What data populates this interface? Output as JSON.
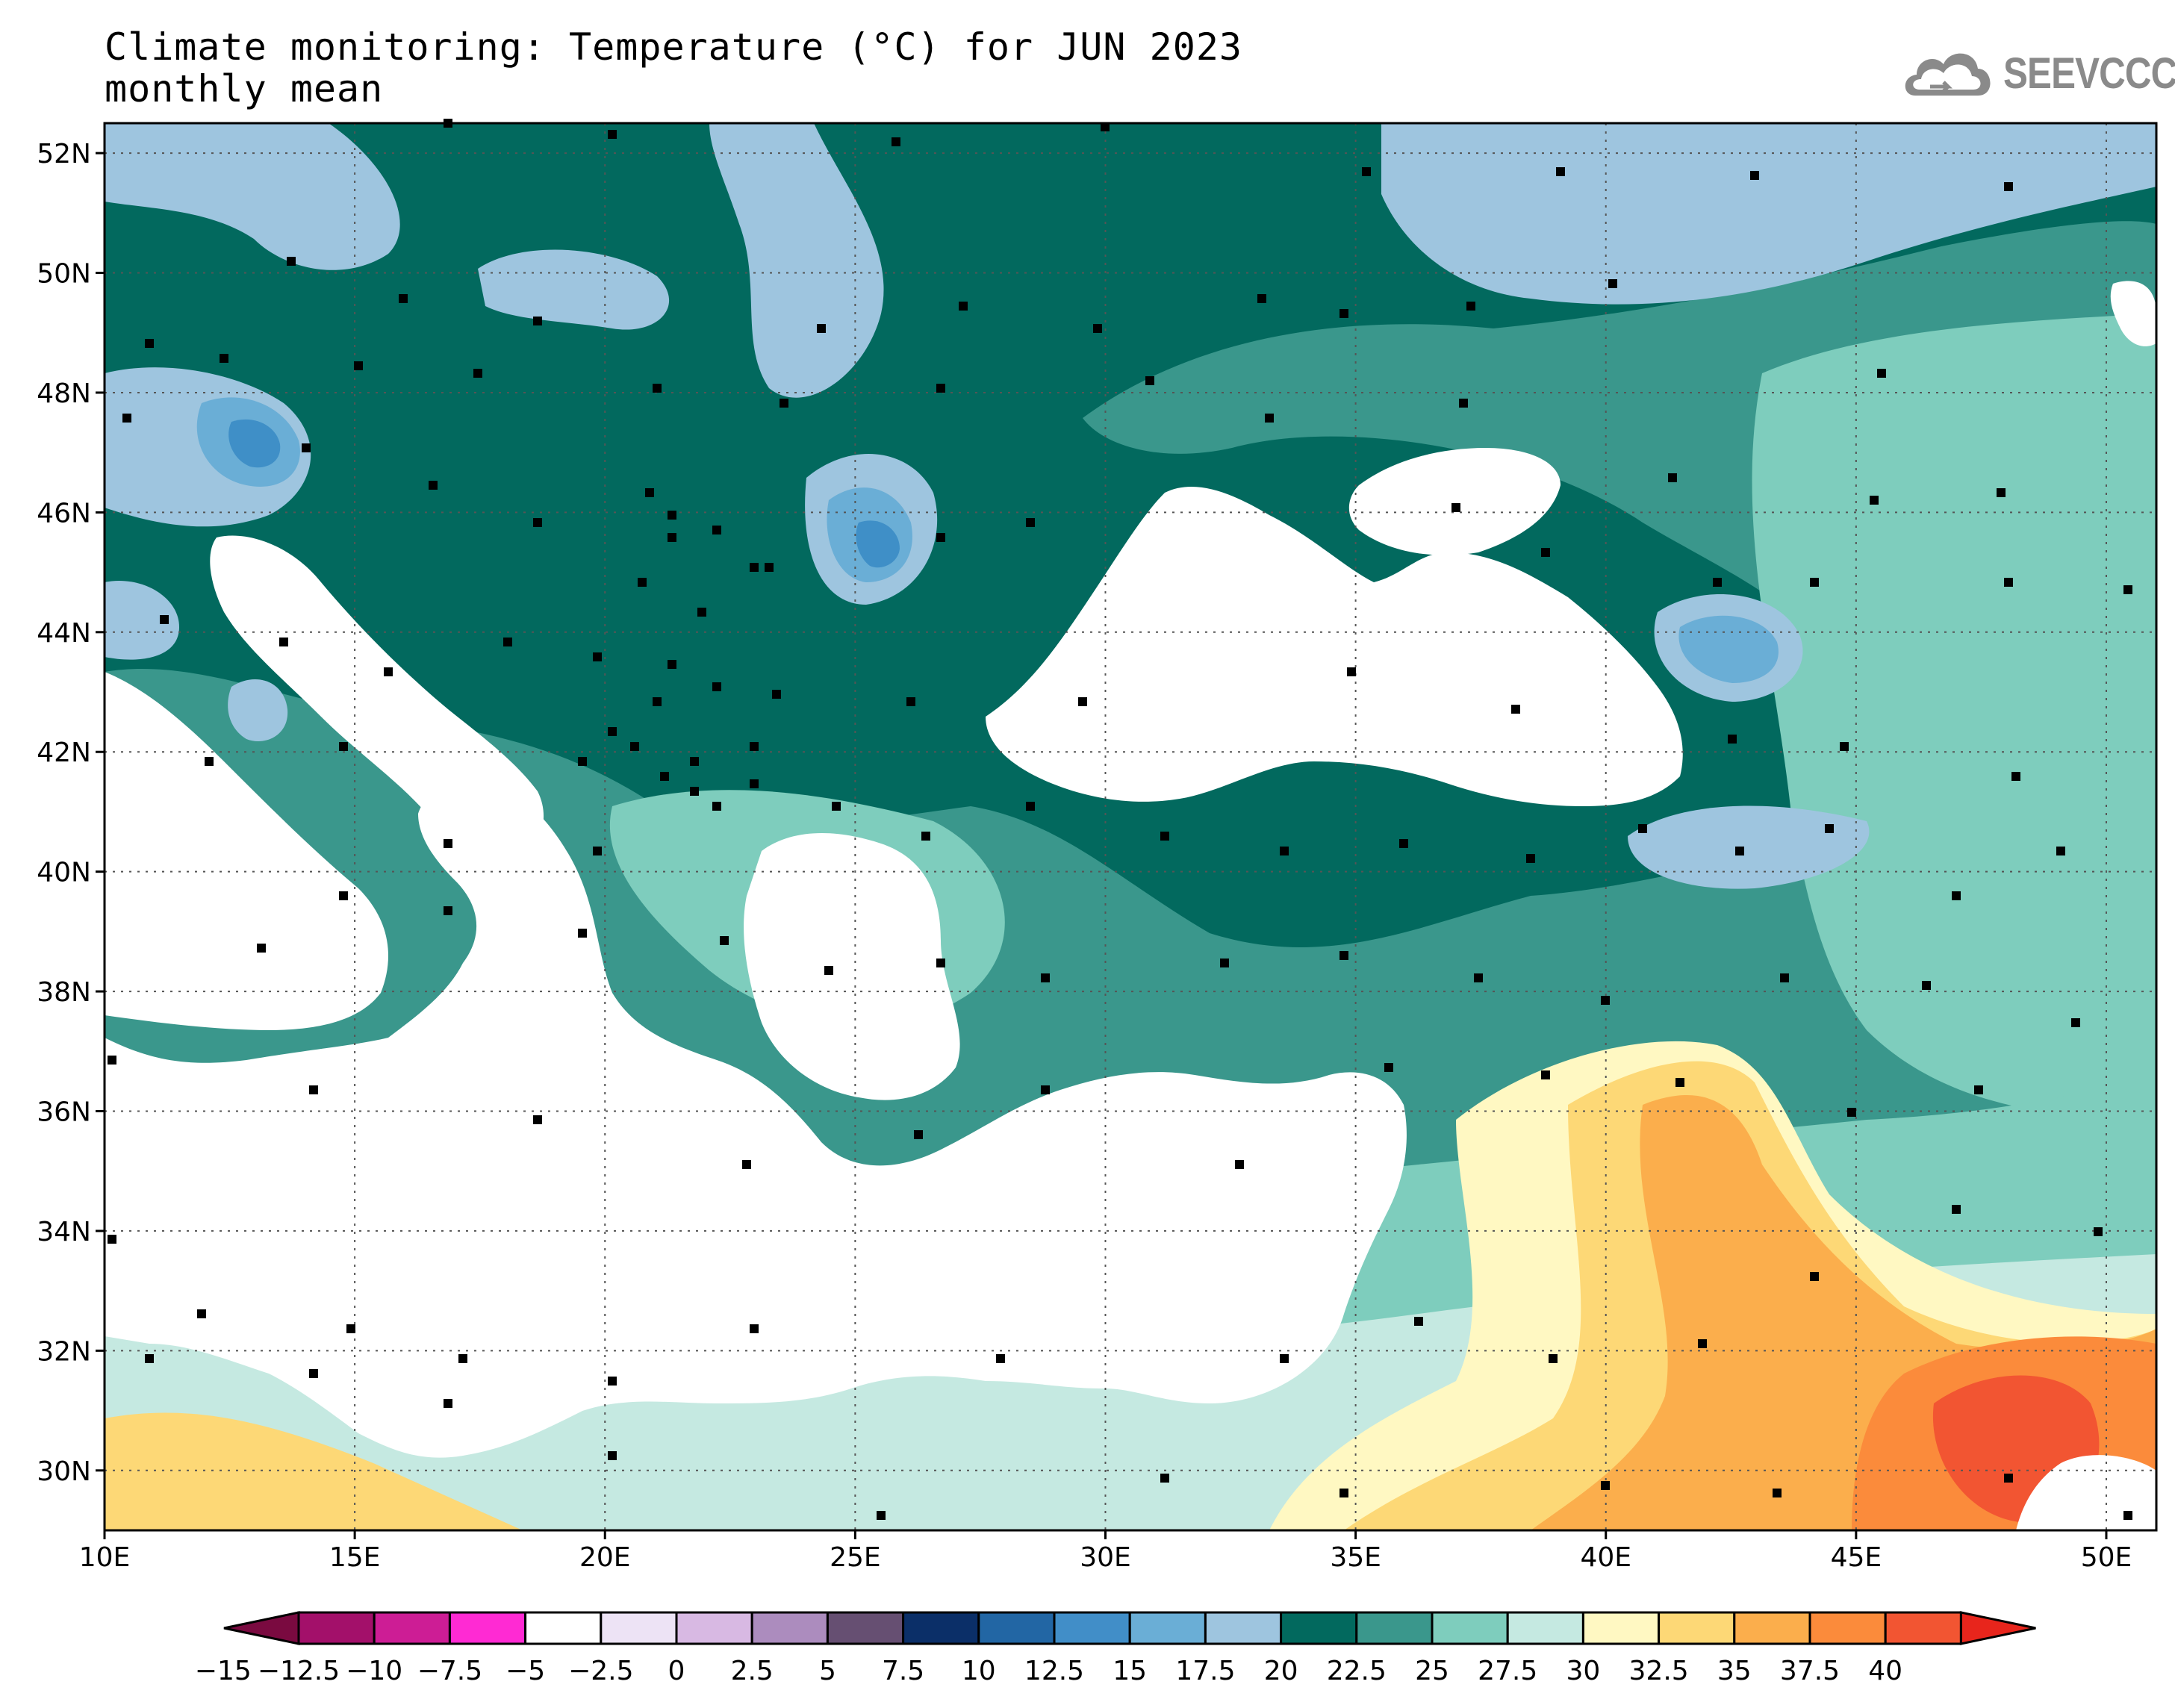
{
  "header": {
    "title_line1": "Climate monitoring: Temperature (°C) for JUN 2023",
    "title_line2": "monthly mean",
    "logo_text": "SEEVCCC",
    "logo_icon": "cloud-logo-icon"
  },
  "map": {
    "lon_labels": [
      "10E",
      "15E",
      "20E",
      "25E",
      "30E",
      "35E",
      "40E",
      "45E",
      "50E"
    ],
    "lat_labels": [
      "52N",
      "50N",
      "48N",
      "46N",
      "44N",
      "42N",
      "40N",
      "38N",
      "36N",
      "34N",
      "32N",
      "30N"
    ],
    "grid": "dotted",
    "land_palette": {
      "cool_blue": "#9ec5df",
      "mid_blue": "#6aaed6",
      "deep_blue": "#3f8fc7",
      "dark_teal": "#02695e",
      "teal": "#3a978c",
      "light_teal": "#7ecdbd",
      "pale_teal": "#c5e9e1",
      "pale_yellow": "#fff8c2",
      "yellow": "#fdd876",
      "orange": "#fbae4c",
      "dark_orange": "#fb8b3b",
      "red": "#f25532",
      "sea": "#ffffff"
    }
  },
  "colorbar": {
    "labels": [
      "−15",
      "−12.5",
      "−10",
      "−7.5",
      "−5",
      "−2.5",
      "0",
      "2.5",
      "5",
      "7.5",
      "10",
      "12.5",
      "15",
      "17.5",
      "20",
      "22.5",
      "25",
      "27.5",
      "30",
      "32.5",
      "35",
      "37.5",
      "40"
    ],
    "under_color": "#7a0a40",
    "over_color": "#e8251c",
    "colors": [
      "#a3106a",
      "#cd1d95",
      "#ff2ad3",
      "#ffffff",
      "#ede3f5",
      "#d8b9e3",
      "#ac8cbe",
      "#664f72",
      "#0b2f68",
      "#2266a4",
      "#418ec8",
      "#6aaed6",
      "#9ec5df",
      "#02695e",
      "#3a978c",
      "#7ecdbd",
      "#c5e9e1",
      "#fff8c2",
      "#fdd876",
      "#fbae4c",
      "#fb8b3b",
      "#f25532"
    ]
  }
}
